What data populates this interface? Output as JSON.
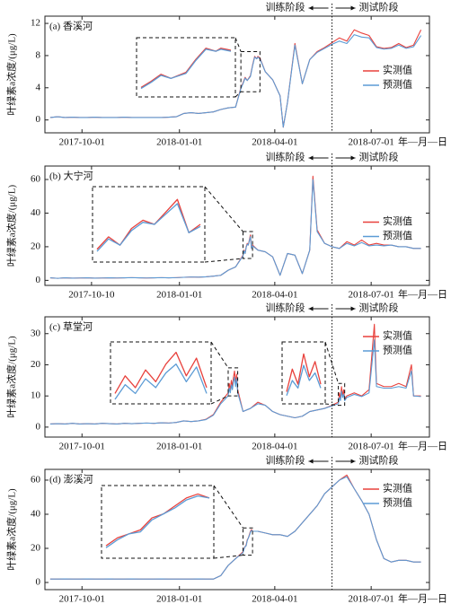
{
  "chart_data": [
    {
      "type": "line",
      "label": "(a) 香溪河",
      "xlabel": "年—月—日",
      "ylabel": "叶绿素a浓度/(μg/L)",
      "train_label": "训练阶段",
      "test_label": "测试阶段",
      "split": "2018-05-25",
      "legend": "right",
      "xlim": [
        "2017-08-27",
        "2018-08-25"
      ],
      "xticks": [
        "2017-10-01",
        "2018-01-01",
        "2018-04-01",
        "2018-07-01"
      ],
      "ylim": [
        -1.6,
        12.9
      ],
      "yticks": [
        0,
        4,
        8,
        12
      ],
      "zoom": [
        {
          "xlim": [
            "2018-02-28",
            "2018-03-18"
          ],
          "ylim": [
            3.5,
            8.5
          ]
        }
      ],
      "x": [
        "2017-09-01",
        "2017-09-08",
        "2017-09-15",
        "2017-09-22",
        "2017-09-29",
        "2017-10-06",
        "2017-10-13",
        "2017-10-20",
        "2017-10-27",
        "2017-11-03",
        "2017-11-10",
        "2017-11-17",
        "2017-11-24",
        "2017-12-01",
        "2017-12-08",
        "2017-12-15",
        "2017-12-22",
        "2017-12-29",
        "2018-01-05",
        "2018-01-12",
        "2018-01-19",
        "2018-01-26",
        "2018-02-02",
        "2018-02-09",
        "2018-02-16",
        "2018-02-23",
        "2018-02-28",
        "2018-03-02",
        "2018-03-04",
        "2018-03-06",
        "2018-03-09",
        "2018-03-11",
        "2018-03-13",
        "2018-03-15",
        "2018-03-16",
        "2018-03-18",
        "2018-03-23",
        "2018-03-30",
        "2018-04-06",
        "2018-04-09",
        "2018-04-13",
        "2018-04-20",
        "2018-04-27",
        "2018-05-04",
        "2018-05-11",
        "2018-05-18",
        "2018-05-25",
        "2018-06-01",
        "2018-06-08",
        "2018-06-15",
        "2018-06-22",
        "2018-06-29",
        "2018-07-06",
        "2018-07-13",
        "2018-07-20",
        "2018-07-27",
        "2018-08-03",
        "2018-08-10",
        "2018-08-17"
      ],
      "series": [
        {
          "name": "实测值",
          "color": "#e8413c",
          "values": [
            0.3,
            0.4,
            0.3,
            0.35,
            0.3,
            0.3,
            0.35,
            0.3,
            0.3,
            0.3,
            0.35,
            0.3,
            0.3,
            0.3,
            0.3,
            0.3,
            0.35,
            0.4,
            0.8,
            0.9,
            0.8,
            0.9,
            1.0,
            1.3,
            1.5,
            1.6,
            4.0,
            4.6,
            5.3,
            4.9,
            5.5,
            6.8,
            7.9,
            7.6,
            7.9,
            7.7,
            6.0,
            5.0,
            3.0,
            -0.9,
            2.2,
            9.5,
            4.5,
            7.5,
            8.5,
            9.0,
            9.6,
            10.2,
            9.8,
            11.2,
            10.8,
            10.5,
            9.1,
            8.9,
            9.0,
            9.5,
            9.0,
            9.3,
            11.2
          ]
        },
        {
          "name": "预测值",
          "color": "#5b9bd5",
          "values": [
            0.3,
            0.4,
            0.3,
            0.35,
            0.3,
            0.3,
            0.35,
            0.3,
            0.3,
            0.3,
            0.35,
            0.3,
            0.3,
            0.3,
            0.3,
            0.3,
            0.35,
            0.4,
            0.8,
            0.9,
            0.8,
            0.9,
            1.0,
            1.3,
            1.5,
            1.6,
            3.9,
            4.5,
            5.2,
            4.9,
            5.4,
            6.7,
            7.8,
            7.6,
            7.8,
            7.6,
            6.0,
            5.0,
            3.0,
            -0.9,
            2.2,
            9.3,
            4.5,
            7.5,
            8.4,
            8.9,
            9.4,
            9.8,
            9.5,
            10.6,
            10.3,
            10.2,
            9.0,
            8.8,
            8.9,
            9.3,
            8.9,
            9.1,
            10.5
          ]
        }
      ]
    },
    {
      "type": "line",
      "label": "(b) 大宁河",
      "xlabel": "年—月—日",
      "ylabel": "叶绿素a浓度/(μg/L)",
      "train_label": "训练阶段",
      "test_label": "测试阶段",
      "split": "2018-05-25",
      "legend": "right",
      "xlim": [
        "2017-08-27",
        "2018-08-25"
      ],
      "xticks": [
        "2017-10-10",
        "2018-01-01",
        "2018-04-01",
        "2018-07-01"
      ],
      "ylim": [
        -3,
        68
      ],
      "yticks": [
        0,
        20,
        40,
        60
      ],
      "zoom": [
        {
          "xlim": [
            "2018-03-02",
            "2018-03-11"
          ],
          "ylim": [
            13,
            29
          ]
        }
      ],
      "x": [
        "2017-09-01",
        "2017-09-08",
        "2017-09-15",
        "2017-09-22",
        "2017-09-29",
        "2017-10-06",
        "2017-10-13",
        "2017-10-20",
        "2017-10-27",
        "2017-11-03",
        "2017-11-10",
        "2017-11-17",
        "2017-11-24",
        "2017-12-01",
        "2017-12-08",
        "2017-12-15",
        "2017-12-22",
        "2017-12-29",
        "2018-01-05",
        "2018-01-12",
        "2018-01-19",
        "2018-01-26",
        "2018-02-02",
        "2018-02-09",
        "2018-02-16",
        "2018-02-23",
        "2018-03-02",
        "2018-03-03",
        "2018-03-04",
        "2018-03-05",
        "2018-03-06",
        "2018-03-07",
        "2018-03-08",
        "2018-03-09",
        "2018-03-10",
        "2018-03-11",
        "2018-03-16",
        "2018-03-23",
        "2018-03-30",
        "2018-04-06",
        "2018-04-13",
        "2018-04-20",
        "2018-04-27",
        "2018-05-04",
        "2018-05-07",
        "2018-05-11",
        "2018-05-18",
        "2018-05-25",
        "2018-06-01",
        "2018-06-08",
        "2018-06-15",
        "2018-06-22",
        "2018-06-29",
        "2018-07-06",
        "2018-07-13",
        "2018-07-20",
        "2018-07-27",
        "2018-08-03",
        "2018-08-10",
        "2018-08-17"
      ],
      "series": [
        {
          "name": "实测值",
          "color": "#e8413c",
          "values": [
            1.5,
            1.2,
            1.5,
            1.3,
            1.4,
            1.5,
            1.3,
            1.4,
            1.5,
            1.4,
            1.5,
            1.6,
            1.5,
            1.4,
            1.5,
            1.6,
            1.5,
            1.6,
            1.8,
            2.0,
            1.9,
            2.1,
            2.5,
            3,
            6,
            8,
            15,
            18,
            16,
            20,
            22,
            21,
            24,
            27,
            19,
            21,
            18,
            17,
            14,
            3,
            16,
            15,
            4,
            18,
            62,
            30,
            22,
            20,
            19,
            23,
            21,
            24,
            21,
            22,
            21,
            21,
            20,
            20,
            19,
            19
          ]
        },
        {
          "name": "预测值",
          "color": "#5b9bd5",
          "values": [
            1.5,
            1.2,
            1.5,
            1.3,
            1.4,
            1.5,
            1.3,
            1.4,
            1.5,
            1.4,
            1.5,
            1.6,
            1.5,
            1.4,
            1.5,
            1.6,
            1.5,
            1.6,
            1.8,
            2.0,
            1.9,
            2.1,
            2.5,
            3,
            6,
            8,
            14.5,
            17.5,
            16,
            19.5,
            21.5,
            21,
            23.5,
            26,
            19,
            20.5,
            18,
            17,
            14,
            3,
            16,
            15,
            4,
            18,
            60,
            29,
            22,
            20,
            19,
            22,
            20.5,
            22.5,
            20.5,
            21,
            20.5,
            21,
            20,
            20,
            19,
            19
          ]
        }
      ]
    },
    {
      "type": "line",
      "label": "(c) 草堂河",
      "xlabel": "年—月—日",
      "ylabel": "叶绿素a浓度/(μg/L)",
      "train_label": "训练阶段",
      "test_label": "测试阶段",
      "split": "2018-05-25",
      "legend": "upper right",
      "xlim": [
        "2017-08-27",
        "2018-08-25"
      ],
      "xticks": [
        "2017-10-01",
        "2018-01-01",
        "2018-04-01",
        "2018-07-01"
      ],
      "ylim": [
        -3.2,
        35.4
      ],
      "yticks": [
        0,
        10,
        20,
        30
      ],
      "zoom": [
        {
          "xlim": [
            "2018-02-16",
            "2018-02-25"
          ],
          "ylim": [
            10,
            19
          ]
        },
        {
          "xlim": [
            "2018-05-31",
            "2018-06-06"
          ],
          "ylim": [
            7,
            14
          ]
        }
      ],
      "x": [
        "2017-09-01",
        "2017-09-08",
        "2017-09-15",
        "2017-09-22",
        "2017-09-29",
        "2017-10-06",
        "2017-10-13",
        "2017-10-20",
        "2017-10-27",
        "2017-11-03",
        "2017-11-10",
        "2017-11-17",
        "2017-11-24",
        "2017-12-01",
        "2017-12-08",
        "2017-12-15",
        "2017-12-22",
        "2017-12-29",
        "2018-01-05",
        "2018-01-12",
        "2018-01-19",
        "2018-01-26",
        "2018-02-02",
        "2018-02-09",
        "2018-02-16",
        "2018-02-17",
        "2018-02-18",
        "2018-02-19",
        "2018-02-20",
        "2018-02-21",
        "2018-02-22",
        "2018-02-23",
        "2018-02-24",
        "2018-02-25",
        "2018-03-02",
        "2018-03-09",
        "2018-03-16",
        "2018-03-23",
        "2018-03-30",
        "2018-04-06",
        "2018-04-13",
        "2018-04-20",
        "2018-04-27",
        "2018-05-04",
        "2018-05-11",
        "2018-05-18",
        "2018-05-25",
        "2018-05-31",
        "2018-06-01",
        "2018-06-02",
        "2018-06-03",
        "2018-06-04",
        "2018-06-05",
        "2018-06-06",
        "2018-06-08",
        "2018-06-15",
        "2018-06-22",
        "2018-06-29",
        "2018-07-04",
        "2018-07-06",
        "2018-07-13",
        "2018-07-20",
        "2018-07-27",
        "2018-08-03",
        "2018-08-08",
        "2018-08-10",
        "2018-08-17"
      ],
      "series": [
        {
          "name": "实测值",
          "color": "#e8413c",
          "values": [
            1,
            1.1,
            1,
            1.2,
            1,
            1.1,
            1,
            1.2,
            1.1,
            1,
            1.2,
            1.1,
            1.2,
            1.3,
            1.2,
            1.4,
            1.3,
            1.5,
            2,
            1.8,
            2,
            2.5,
            4,
            8,
            11,
            14,
            12,
            15,
            13,
            16,
            18,
            14,
            17,
            12,
            5,
            6,
            8,
            7,
            5,
            4,
            3.5,
            3,
            3.5,
            5,
            5.5,
            6,
            7,
            8,
            11,
            9,
            13,
            10,
            12,
            9,
            10,
            11,
            10,
            12,
            33,
            14,
            13,
            13,
            14,
            13,
            20,
            10,
            10
          ]
        },
        {
          "name": "预测值",
          "color": "#5b9bd5",
          "values": [
            1,
            1.1,
            1,
            1.2,
            1,
            1.1,
            1,
            1.2,
            1.1,
            1,
            1.2,
            1.1,
            1.2,
            1.3,
            1.2,
            1.4,
            1.3,
            1.5,
            2,
            1.8,
            2,
            2.4,
            3.8,
            7.5,
            10,
            12.5,
            11,
            13.5,
            12,
            14.5,
            16,
            13,
            15.5,
            11,
            5,
            6,
            7.5,
            7,
            5,
            4,
            3.5,
            3,
            3.5,
            5,
            5.5,
            6,
            6.8,
            7.5,
            9.5,
            8.5,
            11.5,
            9.5,
            10.5,
            8.5,
            9.5,
            10.5,
            9.8,
            11,
            28,
            13,
            12.5,
            12.5,
            13,
            12.5,
            18,
            10,
            9.8
          ]
        }
      ]
    },
    {
      "type": "line",
      "label": "(d) 澎溪河",
      "xlabel": "年—月—日",
      "ylabel": "叶绿素a浓度/(μg/L)",
      "train_label": "训练阶段",
      "test_label": "测试阶段",
      "split": "2018-05-25",
      "legend": "upper right",
      "xlim": [
        "2017-08-27",
        "2018-08-25"
      ],
      "xticks": [
        "2017-10-01",
        "2018-01-01",
        "2018-04-01",
        "2018-07-01"
      ],
      "ylim": [
        -4.2,
        66.3
      ],
      "yticks": [
        0,
        20,
        40,
        60
      ],
      "zoom": [
        {
          "xlim": [
            "2018-03-02",
            "2018-03-11"
          ],
          "ylim": [
            16,
            32
          ]
        }
      ],
      "x": [
        "2017-09-01",
        "2017-09-08",
        "2017-09-15",
        "2017-09-22",
        "2017-09-29",
        "2017-10-06",
        "2017-10-13",
        "2017-10-20",
        "2017-10-27",
        "2017-11-03",
        "2017-11-10",
        "2017-11-17",
        "2017-11-24",
        "2017-12-01",
        "2017-12-08",
        "2017-12-15",
        "2017-12-22",
        "2017-12-29",
        "2018-01-05",
        "2018-01-12",
        "2018-01-19",
        "2018-01-26",
        "2018-02-02",
        "2018-02-09",
        "2018-02-16",
        "2018-02-23",
        "2018-03-02",
        "2018-03-03",
        "2018-03-04",
        "2018-03-05",
        "2018-03-06",
        "2018-03-07",
        "2018-03-08",
        "2018-03-09",
        "2018-03-10",
        "2018-03-11",
        "2018-03-16",
        "2018-03-23",
        "2018-03-30",
        "2018-04-06",
        "2018-04-13",
        "2018-04-20",
        "2018-04-27",
        "2018-05-04",
        "2018-05-11",
        "2018-05-18",
        "2018-05-25",
        "2018-06-01",
        "2018-06-08",
        "2018-06-15",
        "2018-06-22",
        "2018-06-29",
        "2018-07-06",
        "2018-07-13",
        "2018-07-20",
        "2018-07-27",
        "2018-08-03",
        "2018-08-10",
        "2018-08-17"
      ],
      "series": [
        {
          "name": "实测值",
          "color": "#e8413c",
          "values": [
            2,
            2,
            2.1,
            2,
            2,
            2.1,
            2,
            2,
            2.1,
            2,
            2,
            2.1,
            2,
            2,
            2,
            2.1,
            2,
            2,
            2,
            2,
            2.1,
            2,
            2,
            4,
            10,
            14,
            18,
            20,
            21,
            22,
            25,
            26,
            28,
            30,
            31,
            30,
            30,
            29,
            28,
            28,
            27,
            30,
            35,
            40,
            45,
            52,
            56,
            60,
            63,
            55,
            48,
            40,
            25,
            14,
            12,
            13,
            13,
            12,
            12
          ]
        },
        {
          "name": "预测值",
          "color": "#5b9bd5",
          "values": [
            2,
            2,
            2.1,
            2,
            2,
            2.1,
            2,
            2,
            2.1,
            2,
            2,
            2.1,
            2,
            2,
            2,
            2.1,
            2,
            2,
            2,
            2,
            2.1,
            2,
            2,
            4,
            10,
            14,
            17.5,
            19.5,
            21,
            21.5,
            24.5,
            26,
            27.5,
            29.5,
            30.5,
            30,
            30,
            29,
            28,
            28,
            27,
            30,
            35,
            40,
            45,
            52,
            56,
            60,
            62,
            55,
            48,
            40,
            25,
            14,
            12,
            13,
            13,
            12,
            12
          ]
        }
      ]
    }
  ]
}
